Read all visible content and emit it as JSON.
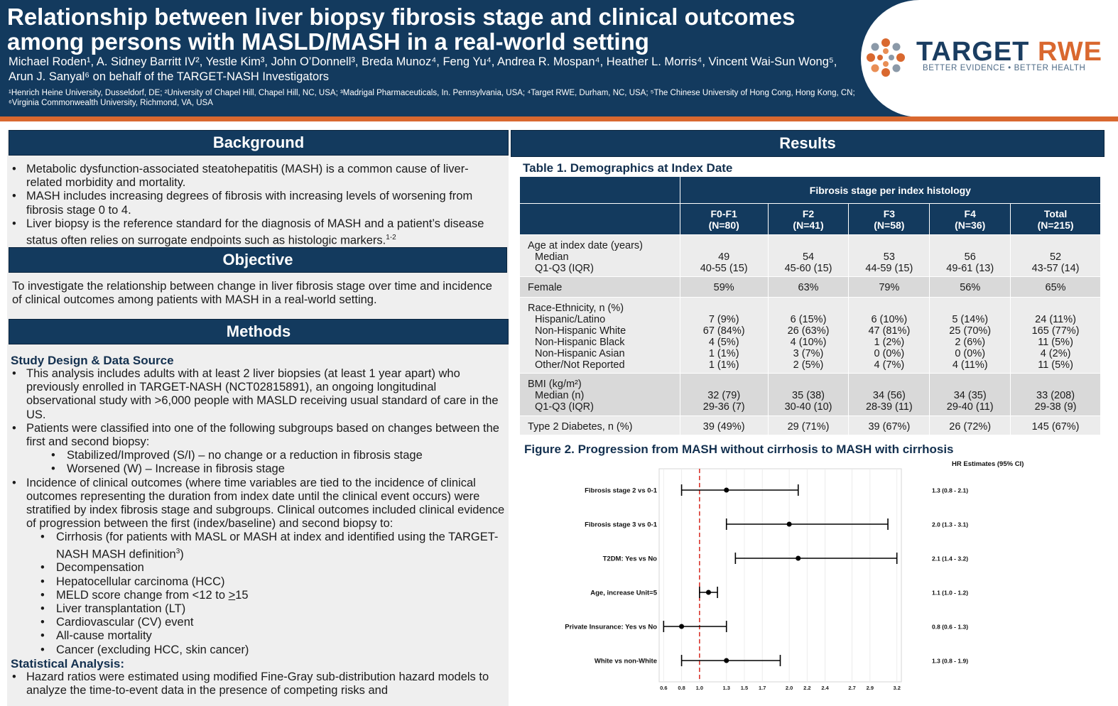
{
  "header": {
    "title": "Relationship between liver biopsy fibrosis stage and clinical outcomes among persons with MASLD/MASH in a real-world setting",
    "authors": "Michael Roden¹, A. Sidney Barritt IV², Yestle Kim³, John O’Donnell³, Breda Munoz⁴, Feng Yu⁴, Andrea R. Mospan⁴, Heather L. Morris⁴, Vincent Wai-Sun Wong⁵, Arun J. Sanyal⁶ on behalf of the TARGET-NASH Investigators",
    "affiliations": "¹Henrich Heine University, Dusseldorf, DE; ²University of Chapel Hill, Chapel Hill, NC, USA; ³Madrigal Pharmaceuticals, In. Pennsylvania, USA; ⁴Target RWE, Durham, NC, USA; ⁵The Chinese University of Hong Cong, Hong Kong, CN; ⁶Virginia Commonwealth University, Richmond, VA, USA"
  },
  "logo": {
    "name_part1": "TARGET",
    "name_part2": "RWE",
    "tagline": "BETTER EVIDENCE • BETTER HEALTH"
  },
  "colors": {
    "navy": "#133a5e",
    "orange": "#d9682f",
    "ref_line": "#d9342b"
  },
  "background": {
    "heading": "Background",
    "bullets": [
      "Metabolic dysfunction-associated steatohepatitis (MASH) is a common cause of liver-related morbidity and mortality.",
      "MASH includes increasing degrees of fibrosis with increasing levels of worsening from fibrosis stage 0 to 4.",
      "Liver biopsy is the reference standard for the diagnosis of MASH and a patient’s disease status often relies on surrogate endpoints such as histologic markers.",
      "1-2"
    ]
  },
  "objective": {
    "heading": "Objective",
    "text": "To investigate the relationship between change in liver fibrosis stage over time and incidence of clinical outcomes among patients with MASH in a real-world setting."
  },
  "methods": {
    "heading": "Methods",
    "study_design_heading": "Study Design & Data Source",
    "bullet1": "This analysis includes adults with at least 2 liver biopsies (at least 1 year apart) who previously enrolled in TARGET-NASH (NCT02815891), an ongoing longitudinal observational study with >6,000 people with MASLD receiving usual standard of care in the US.",
    "bullet2": "Patients were classified into one of the following subgroups based on changes between the first and second biopsy:",
    "subgroups": [
      "Stabilized/Improved (S/I) – no change or a reduction in fibrosis stage",
      "Worsened (W) – Increase in fibrosis stage"
    ],
    "bullet3": "Incidence of clinical outcomes (where time variables are tied to the incidence of clinical outcomes representing the duration from index date until the clinical event occurs) were stratified by index fibrosis stage and subgroups. Clinical outcomes included clinical evidence of progression between the first (index/baseline) and second biopsy to:",
    "cirrhosis_item": "Cirrhosis (for patients with MASL or MASH at index and identified using the TARGET-NASH MASH definition",
    "cirrhosis_sup": "3",
    "cirrhosis_close": ")",
    "meld_prefix": "MELD score change from <12 to ",
    "meld_ge": ">",
    "meld_suffix": "15",
    "outcomes": [
      "Decompensation",
      "Hepatocellular carcinoma (HCC)",
      "Liver transplantation (LT)",
      "Cardiovascular (CV) event",
      "All-cause mortality",
      "Cancer (excluding HCC, skin cancer)"
    ],
    "stat_heading": "Statistical Analysis:",
    "stat_bullet": "Hazard ratios were estimated using modified Fine-Gray sub-distribution hazard models to analyze the time-to-event data in the presence of competing risks and"
  },
  "results": {
    "heading": "Results",
    "table_title": "Table 1. Demographics at Index Date",
    "table_group_header": "Fibrosis stage per index histology",
    "columns": [
      {
        "name": "F0-F1",
        "n": "(N=80)"
      },
      {
        "name": "F2",
        "n": "(N=41)"
      },
      {
        "name": "F3",
        "n": "(N=58)"
      },
      {
        "name": "F4",
        "n": "(N=36)"
      },
      {
        "name": "Total",
        "n": "(N=215)"
      }
    ],
    "age": {
      "label": "Age at index date (years)",
      "median_label": "Median",
      "iqr_label": "Q1-Q3 (IQR)",
      "median": [
        "49",
        "54",
        "53",
        "56",
        "52"
      ],
      "iqr": [
        "40-55 (15)",
        "45-60 (15)",
        "44-59 (15)",
        "49-61 (13)",
        "43-57 (14)"
      ]
    },
    "female": {
      "label": "Female",
      "values": [
        "59%",
        "63%",
        "79%",
        "56%",
        "65%"
      ]
    },
    "race": {
      "label": "Race-Ethnicity, n (%)",
      "rows": [
        {
          "label": "Hispanic/Latino",
          "values": [
            "7 (9%)",
            "6 (15%)",
            "6 (10%)",
            "5 (14%)",
            "24 (11%)"
          ]
        },
        {
          "label": "Non-Hispanic White",
          "values": [
            "67 (84%)",
            "26 (63%)",
            "47 (81%)",
            "25 (70%)",
            "165 (77%)"
          ]
        },
        {
          "label": "Non-Hispanic Black",
          "values": [
            "4 (5%)",
            "4 (10%)",
            "1 (2%)",
            "2 (6%)",
            "11 (5%)"
          ]
        },
        {
          "label": "Non-Hispanic Asian",
          "values": [
            "1 (1%)",
            "3 (7%)",
            "0 (0%)",
            "0 (0%)",
            "4 (2%)"
          ]
        },
        {
          "label": "Other/Not Reported",
          "values": [
            "1 (1%)",
            "2 (5%)",
            "4 (7%)",
            "4 (11%)",
            "11 (5%)"
          ]
        }
      ]
    },
    "bmi": {
      "label": "BMI (kg/m²)",
      "median_label": "Median (n)",
      "iqr_label": "Q1-Q3 (IQR)",
      "median": [
        "32 (79)",
        "35 (38)",
        "34 (56)",
        "34 (35)",
        "33 (208)"
      ],
      "iqr": [
        "29-36 (7)",
        "30-40 (10)",
        "28-39 (11)",
        "29-40 (11)",
        "29-38 (9)"
      ]
    },
    "t2d": {
      "label": "Type 2 Diabetes, n (%)",
      "values": [
        "39 (49%)",
        "29 (71%)",
        "39 (67%)",
        "26 (72%)",
        "145 (67%)"
      ]
    },
    "figure_title": "Figure 2.  Progression from MASH without cirrhosis to MASH with cirrhosis"
  },
  "chart_data": {
    "type": "scatter",
    "subtype": "forest",
    "title": "Figure 2.  Progression from MASH without cirrhosis to MASH with cirrhosis",
    "estimates_header": "HR Estimates (95% CI)",
    "reference_value": 1.0,
    "xlim": [
      0.55,
      3.25
    ],
    "x_ticks": [
      0.6,
      0.8,
      1.0,
      1.3,
      1.5,
      1.7,
      2.0,
      2.2,
      2.4,
      2.7,
      2.9,
      3.2
    ],
    "x_tick_labels": [
      "0.6",
      "0.8",
      "1.0",
      "1.3",
      "1.5",
      "1.7",
      "2.0",
      "2.2",
      "2.4",
      "2.7",
      "2.9",
      "3.2"
    ],
    "rows": [
      {
        "label": "Fibrosis stage 2 vs 0-1",
        "hr": 1.3,
        "lo": 0.8,
        "hi": 2.1,
        "text": "1.3 (0.8 - 2.1)"
      },
      {
        "label": "Fibrosis stage 3 vs 0-1",
        "hr": 2.0,
        "lo": 1.3,
        "hi": 3.1,
        "text": "2.0 (1.3 - 3.1)"
      },
      {
        "label": "T2DM:  Yes vs No",
        "hr": 2.1,
        "lo": 1.4,
        "hi": 3.2,
        "text": "2.1 (1.4 - 3.2)"
      },
      {
        "label": "Age, increase Unit=5",
        "hr": 1.1,
        "lo": 1.0,
        "hi": 1.2,
        "text": "1.1 (1.0 - 1.2)"
      },
      {
        "label": "Private Insurance: Yes vs No",
        "hr": 0.8,
        "lo": 0.6,
        "hi": 1.3,
        "text": "0.8 (0.6 - 1.3)"
      },
      {
        "label": "White vs non-White",
        "hr": 1.3,
        "lo": 0.8,
        "hi": 1.9,
        "text": "1.3 (0.8 - 1.9)"
      }
    ]
  }
}
